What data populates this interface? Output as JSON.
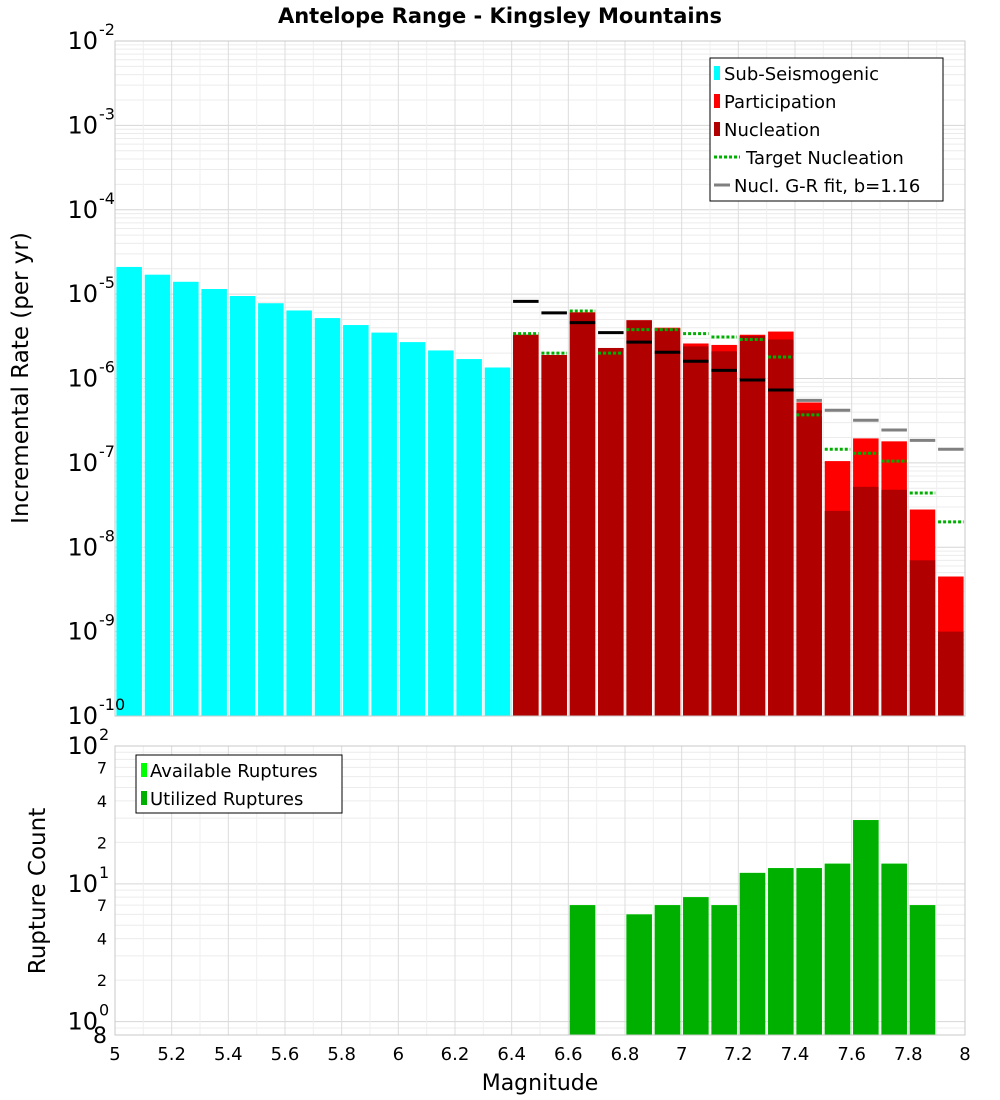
{
  "colors": {
    "sub_seismogenic": "#00ffff",
    "participation": "#ff0000",
    "nucleation": "#b00000",
    "target_nucleation": "#00b000",
    "gr_fit": "#808080",
    "gr_fit_dark": "#000000",
    "available": "#00ff00",
    "utilized": "#00b000"
  },
  "chart_data": [
    {
      "type": "bar",
      "title": "Antelope Range - Kingsley Mountains",
      "xlabel": "",
      "ylabel": "Incremental Rate (per yr)",
      "yscale": "log",
      "ylim": [
        1e-10,
        0.01
      ],
      "xlim": [
        5,
        8
      ],
      "y_ticks": [
        {
          "base": "10",
          "exp": "-10"
        },
        {
          "base": "10",
          "exp": "-9"
        },
        {
          "base": "10",
          "exp": "-8"
        },
        {
          "base": "10",
          "exp": "-7"
        },
        {
          "base": "10",
          "exp": "-6"
        },
        {
          "base": "10",
          "exp": "-5"
        },
        {
          "base": "10",
          "exp": "-4"
        },
        {
          "base": "10",
          "exp": "-3"
        },
        {
          "base": "10",
          "exp": "-2"
        }
      ],
      "legend": [
        {
          "label": "Sub-Seismogenic",
          "kind": "bar",
          "color_key": "sub_seismogenic"
        },
        {
          "label": "Participation",
          "kind": "bar",
          "color_key": "participation"
        },
        {
          "label": "Nucleation",
          "kind": "bar",
          "color_key": "nucleation"
        },
        {
          "label": "Target Nucleation",
          "kind": "dotted",
          "color_key": "target_nucleation"
        },
        {
          "label": "Nucl. G-R fit, b=1.16",
          "kind": "line",
          "color_key": "gr_fit"
        }
      ],
      "legend_position": "top-right",
      "sub_seismogenic": {
        "x": [
          5.05,
          5.15,
          5.25,
          5.35,
          5.45,
          5.55,
          5.65,
          5.75,
          5.85,
          5.95,
          6.05,
          6.15,
          6.25,
          6.35
        ],
        "values": [
          2.1e-05,
          1.7e-05,
          1.4e-05,
          1.15e-05,
          9.5e-06,
          7.8e-06,
          6.4e-06,
          5.2e-06,
          4.3e-06,
          3.5e-06,
          2.7e-06,
          2.15e-06,
          1.7e-06,
          1.35e-06
        ]
      },
      "participation": {
        "x": [
          6.45,
          6.55,
          6.65,
          6.75,
          6.85,
          6.95,
          7.05,
          7.15,
          7.25,
          7.35,
          7.45,
          7.55,
          7.65,
          7.75,
          7.85,
          7.95
        ],
        "values": [
          3.3e-06,
          1.9e-06,
          6.1e-06,
          2.3e-06,
          4.9e-06,
          4e-06,
          2.6e-06,
          2.5e-06,
          3.3e-06,
          3.6e-06,
          5.2e-07,
          1.05e-07,
          1.95e-07,
          1.8e-07,
          2.8e-08,
          4.5e-09
        ]
      },
      "nucleation": {
        "x": [
          6.45,
          6.55,
          6.65,
          6.75,
          6.85,
          6.95,
          7.05,
          7.15,
          7.25,
          7.35,
          7.45,
          7.55,
          7.65,
          7.75,
          7.85,
          7.95
        ],
        "values": [
          3.3e-06,
          1.9e-06,
          6e-06,
          2.3e-06,
          4.9e-06,
          3.9e-06,
          2.4e-06,
          2.1e-06,
          3.2e-06,
          2.9e-06,
          4.2e-07,
          2.7e-08,
          5.2e-08,
          4.8e-08,
          7e-09,
          1e-09
        ]
      },
      "target_nucleation": {
        "x": [
          6.45,
          6.55,
          6.65,
          6.75,
          6.85,
          6.95,
          7.05,
          7.15,
          7.25,
          7.35,
          7.45,
          7.55,
          7.65,
          7.75,
          7.85,
          7.95
        ],
        "values": [
          3.4e-06,
          2e-06,
          6.3e-06,
          2e-06,
          3.8e-06,
          3.8e-06,
          3.4e-06,
          3.1e-06,
          2.9e-06,
          1.8e-06,
          3.7e-07,
          1.45e-07,
          1.3e-07,
          1.05e-07,
          4.4e-08,
          2e-08
        ]
      },
      "gr_fit": {
        "x": [
          6.45,
          6.55,
          6.65,
          6.75,
          6.85,
          6.95,
          7.05,
          7.15,
          7.25,
          7.35,
          7.45,
          7.55,
          7.65,
          7.75,
          7.85,
          7.95
        ],
        "values": [
          8.2e-06,
          6e-06,
          4.6e-06,
          3.5e-06,
          2.7e-06,
          2.05e-06,
          1.6e-06,
          1.25e-06,
          9.6e-07,
          7.3e-07,
          5.5e-07,
          4.2e-07,
          3.2e-07,
          2.45e-07,
          1.85e-07,
          1.45e-07
        ],
        "dark_count": 10
      }
    },
    {
      "type": "bar",
      "title": "",
      "xlabel": "Magnitude",
      "ylabel": "Rupture Count",
      "yscale": "log",
      "ylim": [
        0.8,
        100
      ],
      "xlim": [
        5,
        8
      ],
      "x_ticks": [
        "5",
        "5.2",
        "5.4",
        "5.6",
        "5.8",
        "6",
        "6.2",
        "6.4",
        "6.6",
        "6.8",
        "7",
        "7.2",
        "7.4",
        "7.6",
        "7.8",
        "8"
      ],
      "y_major_ticks": [
        {
          "value": 1,
          "base": "10",
          "exp": "0"
        },
        {
          "value": 10,
          "base": "10",
          "exp": "1"
        },
        {
          "value": 100,
          "base": "10",
          "exp": "2"
        }
      ],
      "y_minor_labels": [
        {
          "value": 0.8,
          "label": "8"
        },
        {
          "value": 2,
          "label": "2"
        },
        {
          "value": 4,
          "label": "4"
        },
        {
          "value": 7,
          "label": "7"
        },
        {
          "value": 20,
          "label": "2"
        },
        {
          "value": 40,
          "label": "4"
        },
        {
          "value": 70,
          "label": "7"
        }
      ],
      "legend": [
        {
          "label": "Available Ruptures",
          "kind": "bar",
          "color_key": "available"
        },
        {
          "label": "Utilized Ruptures",
          "kind": "bar",
          "color_key": "utilized"
        }
      ],
      "legend_position": "top-left",
      "available": {
        "x": [
          6.65,
          6.85,
          6.95,
          7.05,
          7.15,
          7.25,
          7.35,
          7.45,
          7.55,
          7.65,
          7.75,
          7.85
        ],
        "values": [
          7,
          6,
          7,
          8,
          7,
          12,
          13,
          13,
          14,
          29,
          14,
          7
        ]
      },
      "utilized": {
        "x": [
          6.65,
          6.85,
          6.95,
          7.05,
          7.15,
          7.25,
          7.35,
          7.45,
          7.55,
          7.65,
          7.75,
          7.85
        ],
        "values": [
          7,
          6,
          7,
          8,
          7,
          12,
          13,
          13,
          14,
          29,
          14,
          7
        ]
      }
    }
  ]
}
